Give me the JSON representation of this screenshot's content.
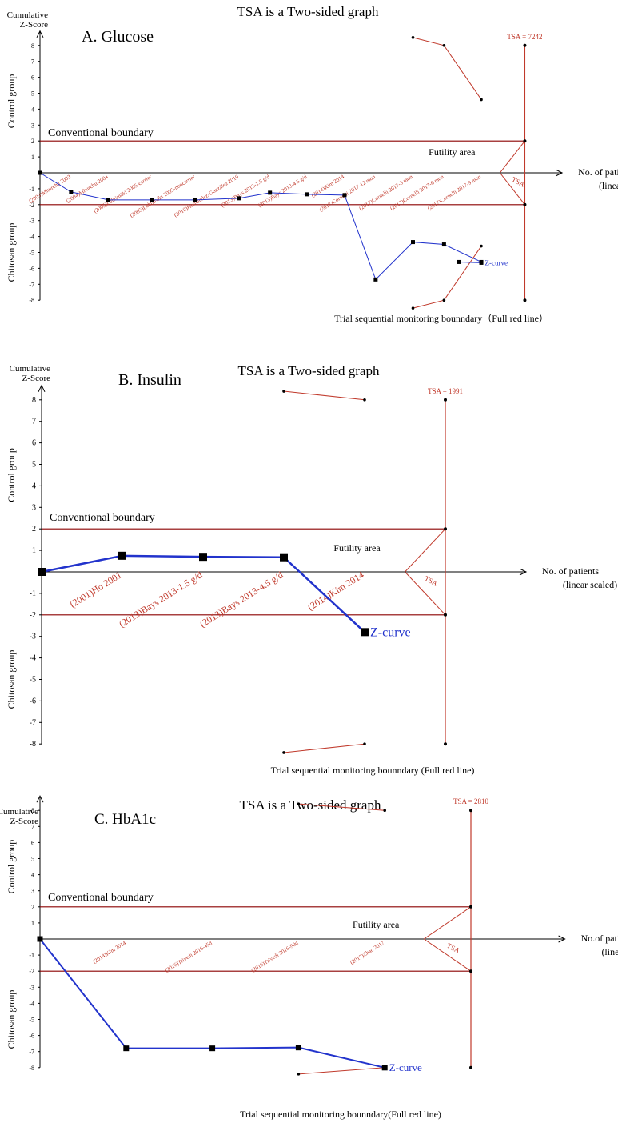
{
  "chart_data": [
    {
      "type": "line",
      "title": "TSA is a Two-sided graph",
      "panel_label": "A. Glucose",
      "ylabel": "Cumulative Z-Score",
      "xlabel": "No. of patients (linear scaled)",
      "ylim": [
        -8,
        8
      ],
      "yticks": [
        "-8",
        "-7",
        "-6",
        "-5",
        "-4",
        "-3",
        "-2",
        "-1",
        "",
        "1",
        "2",
        "3",
        "4",
        "5",
        "6",
        "7",
        "8"
      ],
      "control_label": "Control group",
      "treatment_label": "Chitosan group",
      "conventional_boundary_label": "Conventional boundary",
      "conventional_boundary": [
        2,
        -2
      ],
      "futility_label": "Futility area",
      "tsa_label": "TSA = 7242",
      "tsa_axis_label": "TSA",
      "monitoring_label": "Trial sequential monitoring bounndary（Full red line）",
      "zcurve_label": "Z-curve",
      "required_information_size": 7242,
      "studies": [
        "(2003)Mhurchu 2003",
        "(2004)Mhurchu 2004",
        "(2005)Lehtimäki 2005-carrier",
        "(2005)Lehtimäki 2005-noncarrier",
        "(2010)Hernández-González 2010",
        "(2013)Bays 2013-1.5 g/d",
        "(2013)Bays 2013-4.5 g/d",
        "(2014)Kim 2014",
        "(2017)Cornelli 2017-12 mon",
        "(2017)Cornelli 2017-3 mon",
        "(2017)Cornelli 2017-6 mon",
        "(2017)Cornelli 2017-9 mon",
        "(2017)Zhao 2017"
      ],
      "series": [
        {
          "x": [
            0,
            2.5,
            5.5,
            9,
            12.5,
            16,
            18.5,
            21.5,
            24.5,
            27,
            30,
            32.5,
            35.5
          ],
          "y": [
            0,
            -1.2,
            -1.7,
            -1.7,
            -1.7,
            -1.6,
            -1.25,
            -1.35,
            -1.4,
            -6.7,
            -4.35,
            -4.5,
            -5.6
          ]
        },
        {
          "x": [
            33.7,
            35.5
          ],
          "y": [
            -5.6,
            -5.65
          ]
        }
      ],
      "boundary_upper": {
        "x": [
          30,
          32.5,
          35.5
        ],
        "y": [
          8.5,
          8.0,
          4.6
        ]
      },
      "boundary_lower": {
        "x": [
          30,
          32.5,
          35.5
        ],
        "y": [
          -8.5,
          -8.0,
          -4.6
        ]
      },
      "futility_x": [
        37,
        39
      ],
      "x_end": 39,
      "x_axis_end": 42
    },
    {
      "type": "line",
      "title": "TSA is a Two-sided graph",
      "panel_label": "B. Insulin",
      "ylabel": "Cumulative Z-Score",
      "xlabel": "No. of patients (linear scaled)",
      "ylim": [
        -8,
        8
      ],
      "yticks": [
        "-8",
        "-7",
        "-6",
        "-5",
        "-4",
        "-3",
        "-2",
        "-1",
        "",
        "1",
        "2",
        "3",
        "4",
        "5",
        "6",
        "7",
        "8"
      ],
      "control_label": "Control group",
      "treatment_label": "Chitosan group",
      "conventional_boundary_label": "Conventional boundary",
      "conventional_boundary": [
        2,
        -2
      ],
      "futility_label": "Futility area",
      "tsa_label": "TSA = 1991",
      "tsa_axis_label": "TSA",
      "monitoring_label": "Trial sequential monitoring bounndary (Full red line)",
      "zcurve_label": "Z-curve",
      "required_information_size": 1991,
      "studies": [
        "(2001)Ho 2001",
        "(2013)Bays 2013-1.5 g/d",
        "(2013)Bays 2013-4.5 g/d",
        "(2014)Kim 2014"
      ],
      "series": [
        {
          "x": [
            0,
            10,
            20,
            30,
            40
          ],
          "y": [
            0,
            0.75,
            0.7,
            0.68,
            -2.8
          ]
        }
      ],
      "boundary_upper": {
        "x": [
          30,
          40
        ],
        "y": [
          8.4,
          8.0
        ]
      },
      "boundary_lower": {
        "x": [
          30,
          40
        ],
        "y": [
          -8.4,
          -8.0
        ]
      },
      "futility_x": [
        45,
        50
      ],
      "x_end": 50,
      "x_axis_end": 60
    },
    {
      "type": "line",
      "title": "TSA is a Two-sided graph",
      "panel_label": "C. HbA1c",
      "ylabel": "Cumulative Z-Score",
      "xlabel": "No.of patients (linear scaled)",
      "ylim": [
        -8,
        8
      ],
      "yticks": [
        "-8",
        "-7",
        "-6",
        "-5",
        "-4",
        "-3",
        "-2",
        "-1",
        "",
        "1",
        "2",
        "3",
        "4",
        "5",
        "6",
        "7",
        "8"
      ],
      "control_label": "Control group",
      "treatment_label": "Chitosan group",
      "conventional_boundary_label": "Conventional boundary",
      "conventional_boundary": [
        2,
        -2
      ],
      "futility_label": "Futility area",
      "tsa_label": "TSA = 2810",
      "tsa_axis_label": "TSA",
      "monitoring_label": "Trial sequential monitoring bounndary(Full red line)",
      "zcurve_label": "Z-curve",
      "required_information_size": 2810,
      "studies": [
        "(2014)Kim 2014",
        "(2016)Trivedi 2016-45d",
        "(2016)Trivedi 2016-90d",
        "(2017)Zhao 2017"
      ],
      "series": [
        {
          "x": [
            0,
            11,
            22,
            33,
            44
          ],
          "y": [
            0,
            -6.8,
            -6.8,
            -6.75,
            -8.0
          ]
        }
      ],
      "boundary_upper": {
        "x": [
          33,
          44
        ],
        "y": [
          8.4,
          8.0
        ]
      },
      "boundary_lower": {
        "x": [
          33,
          44
        ],
        "y": [
          -8.4,
          -8.0
        ]
      },
      "futility_x": [
        49,
        55
      ],
      "x_end": 55,
      "x_axis_end": 67
    }
  ]
}
